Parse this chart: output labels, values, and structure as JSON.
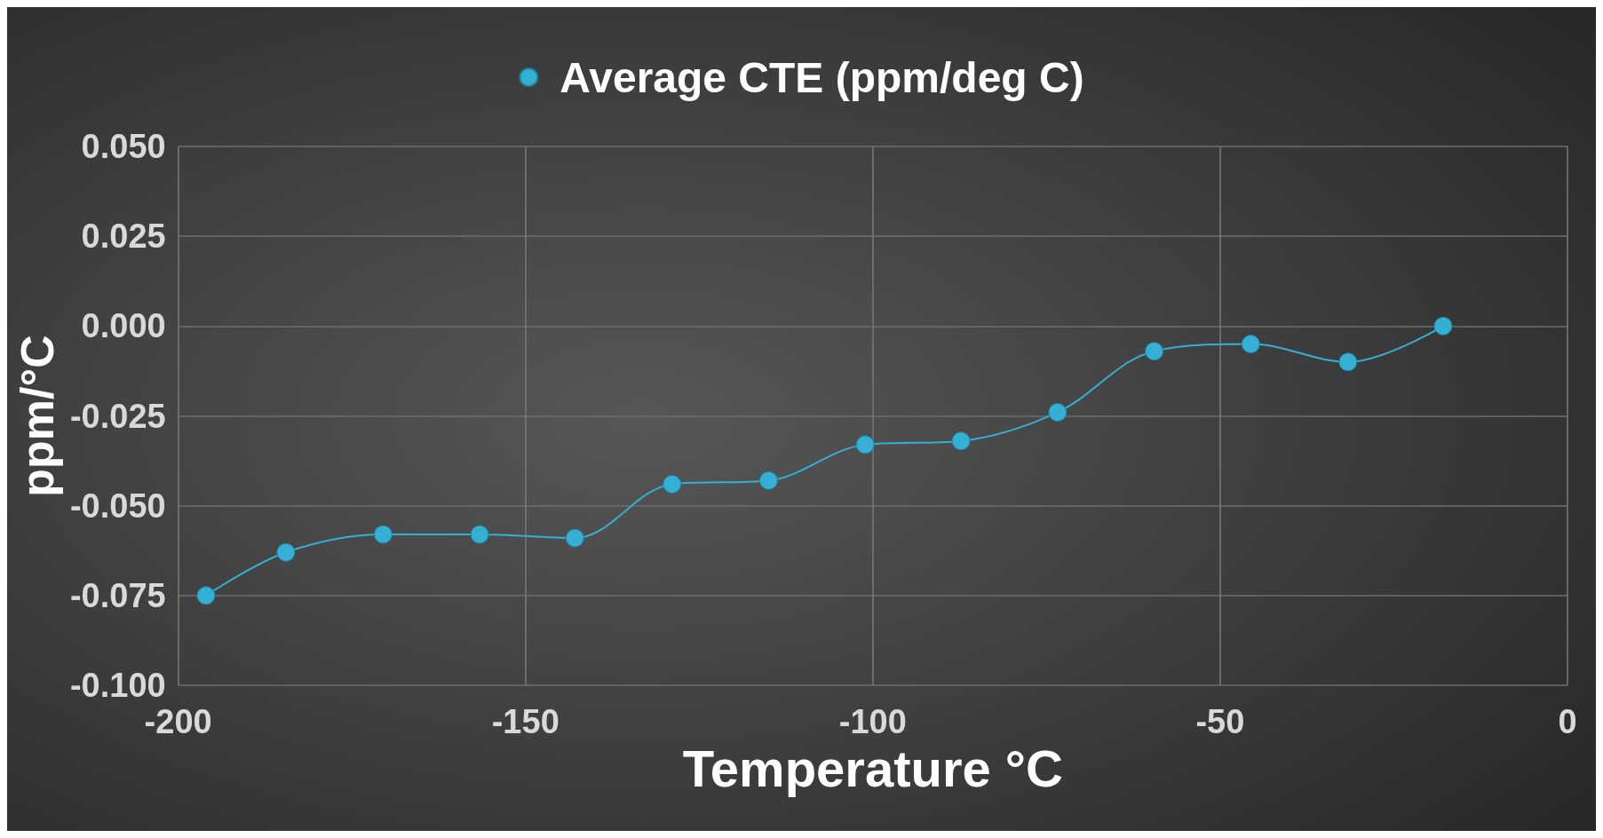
{
  "chart_data": {
    "type": "line",
    "xlabel": "Temperature °C",
    "ylabel": "ppm/°C",
    "x": [
      -196,
      -184.5,
      -170.5,
      -156.6,
      -142.9,
      -128.9,
      -115,
      -101.1,
      -87.3,
      -73.4,
      -59.5,
      -45.6,
      -31.6,
      -17.9
    ],
    "series": [
      {
        "name": "Average CTE (ppm/deg C)",
        "color": "#35b0d4",
        "values": [
          -0.075,
          -0.063,
          -0.058,
          -0.058,
          -0.059,
          -0.044,
          -0.043,
          -0.033,
          -0.032,
          -0.024,
          -0.007,
          -0.005,
          -0.01,
          0.0
        ]
      }
    ],
    "xlim": [
      -200,
      0
    ],
    "xticks": [
      -200,
      -150,
      -100,
      -50,
      0
    ],
    "ylim": [
      -0.1,
      0.05
    ],
    "yticks": [
      {
        "value": -0.1,
        "label": "-0.100"
      },
      {
        "value": -0.075,
        "label": "-0.075"
      },
      {
        "value": -0.05,
        "label": "-0.050"
      },
      {
        "value": -0.025,
        "label": "-0.025"
      },
      {
        "value": 0,
        "label": "0.000"
      },
      {
        "value": 0.025,
        "label": "0.025"
      },
      {
        "value": 0.05,
        "label": "0.050"
      }
    ],
    "grid": true,
    "legend": "top",
    "marker": "circle",
    "line_style": "solid"
  }
}
